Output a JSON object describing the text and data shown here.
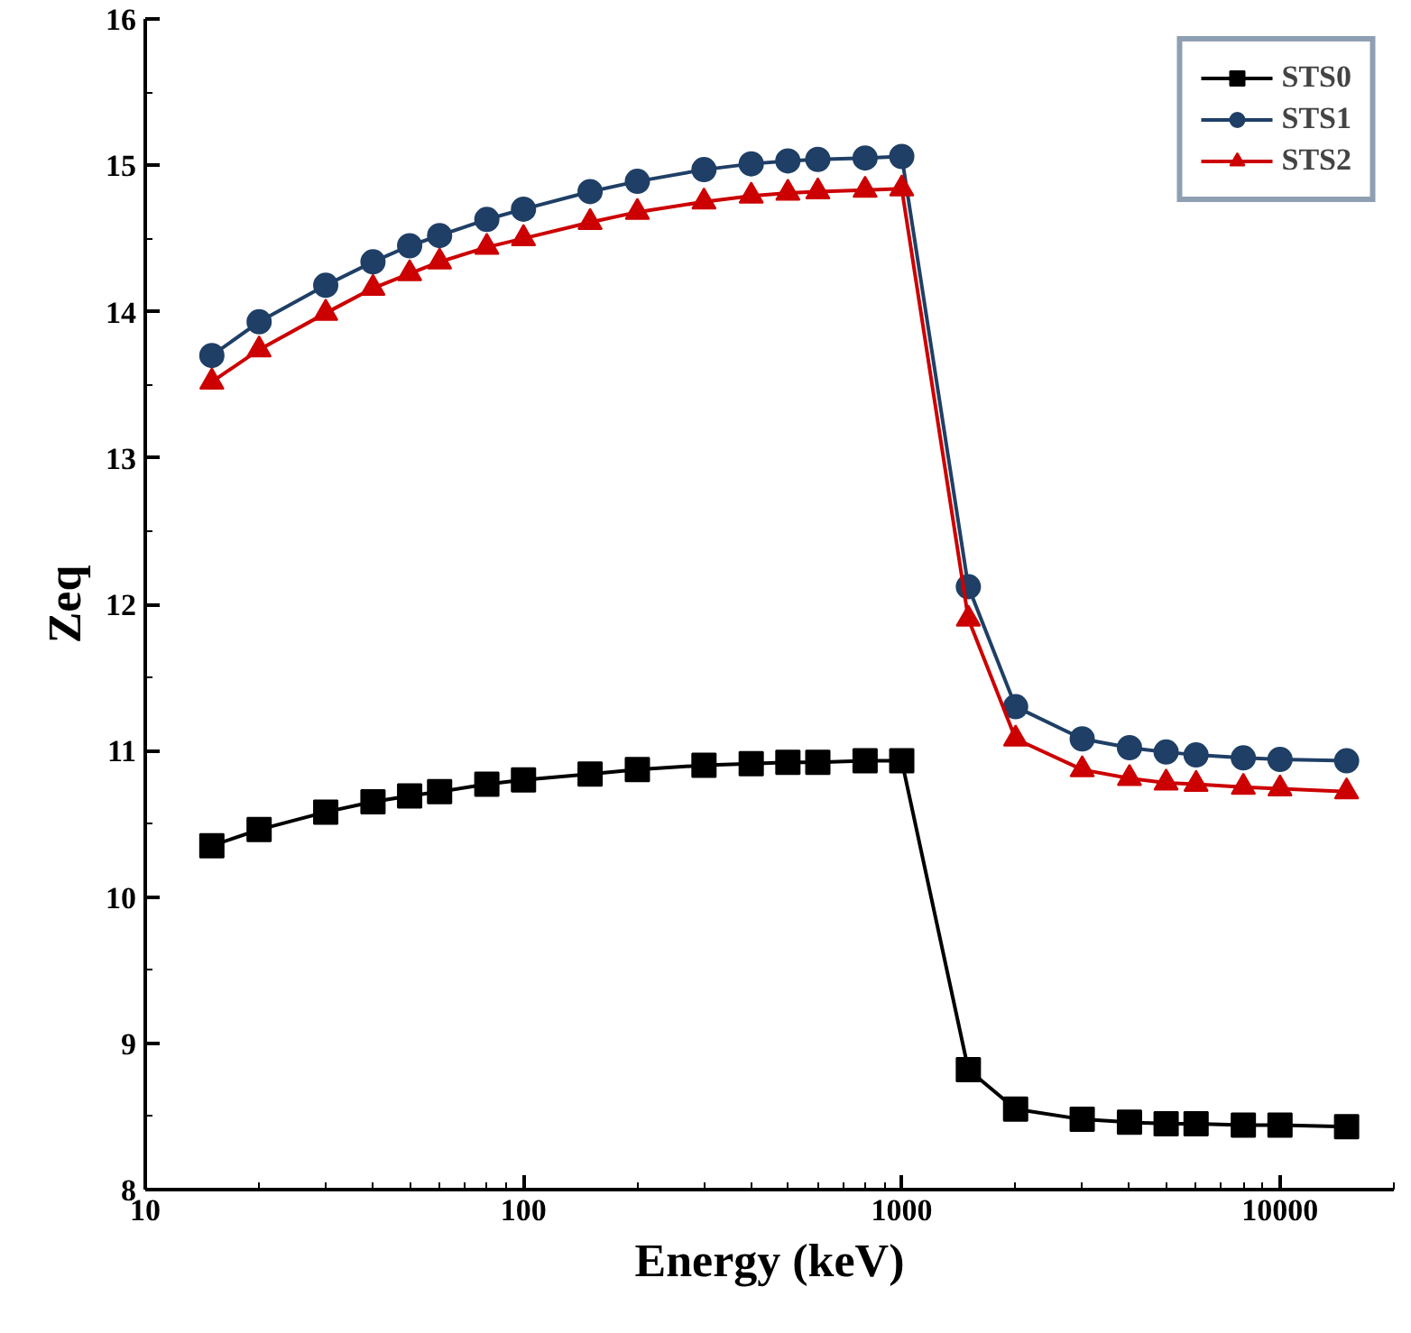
{
  "chart_data": {
    "type": "line",
    "xlabel": "Energy (keV)",
    "ylabel": "Zeq",
    "log": "x",
    "x": [
      15,
      20,
      30,
      40,
      50,
      60,
      80,
      100,
      150,
      200,
      300,
      400,
      500,
      600,
      800,
      1000,
      1500,
      2000,
      3000,
      4000,
      5000,
      6000,
      8000,
      10000,
      15000
    ],
    "series": [
      {
        "name": "STS0",
        "color": "#000000",
        "marker": "square",
        "values": [
          10.35,
          10.46,
          10.58,
          10.65,
          10.69,
          10.72,
          10.77,
          10.8,
          10.84,
          10.87,
          10.9,
          10.91,
          10.92,
          10.92,
          10.93,
          10.93,
          8.82,
          8.55,
          8.48,
          8.46,
          8.45,
          8.45,
          8.44,
          8.44,
          8.43
        ]
      },
      {
        "name": "STS1",
        "color": "#1f3f66",
        "marker": "circle",
        "values": [
          13.7,
          13.93,
          14.18,
          14.34,
          14.45,
          14.52,
          14.63,
          14.7,
          14.82,
          14.89,
          14.97,
          15.01,
          15.03,
          15.04,
          15.05,
          15.06,
          12.12,
          11.3,
          11.08,
          11.02,
          10.99,
          10.97,
          10.95,
          10.94,
          10.93
        ]
      },
      {
        "name": "STS2",
        "color": "#cc0000",
        "marker": "triangle",
        "values": [
          13.52,
          13.74,
          13.99,
          14.16,
          14.26,
          14.34,
          14.44,
          14.5,
          14.61,
          14.68,
          14.75,
          14.79,
          14.81,
          14.82,
          14.83,
          14.84,
          11.9,
          11.08,
          10.87,
          10.81,
          10.78,
          10.77,
          10.75,
          10.74,
          10.72
        ]
      }
    ],
    "xlim": [
      10,
      20000
    ],
    "xticks": [
      10,
      100,
      1000,
      10000
    ],
    "ylim": [
      8,
      16
    ],
    "yticks": [
      8,
      9,
      10,
      11,
      12,
      13,
      14,
      15,
      16
    ],
    "grid": false,
    "legend": "top right",
    "line_style": "solid"
  }
}
